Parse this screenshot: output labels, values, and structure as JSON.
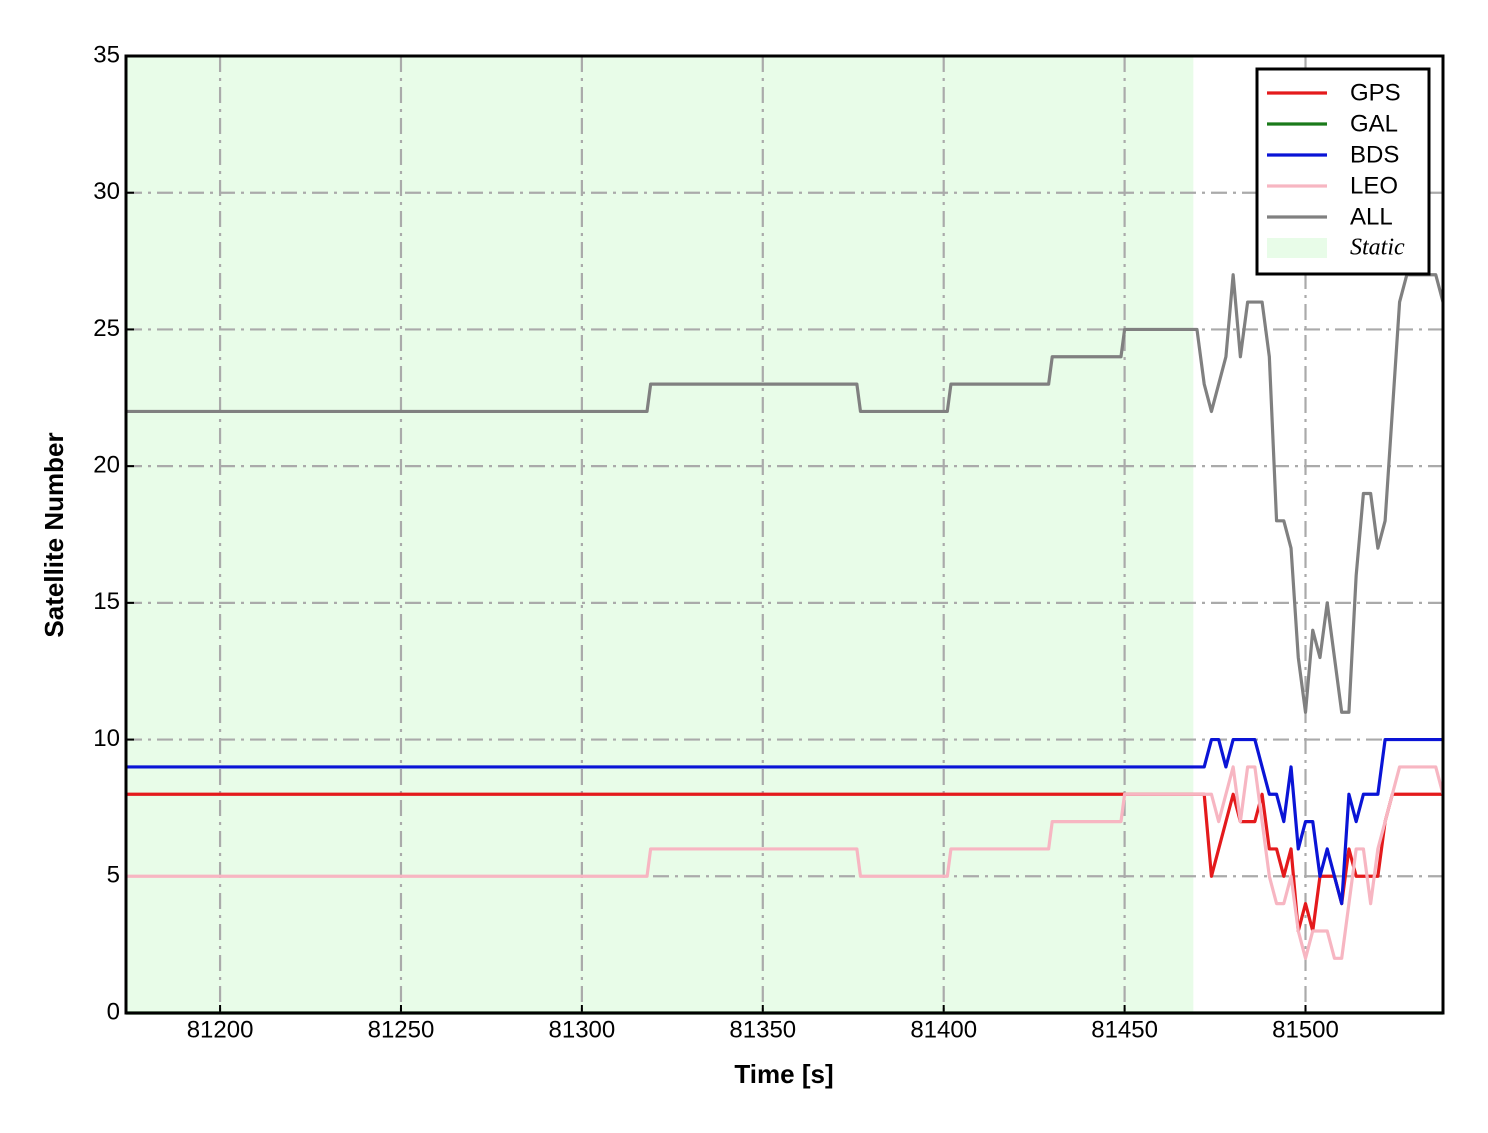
{
  "chart_data": {
    "type": "line",
    "xlabel": "Time [s]",
    "ylabel": "Satellite Number",
    "x": [
      81174,
      81318,
      81319,
      81376,
      81377,
      81401,
      81402,
      81429,
      81430,
      81449,
      81450,
      81470,
      81472,
      81474,
      81476,
      81478,
      81480,
      81482,
      81484,
      81486,
      81488,
      81490,
      81492,
      81494,
      81496,
      81498,
      81500,
      81502,
      81504,
      81506,
      81508,
      81510,
      81512,
      81514,
      81516,
      81518,
      81520,
      81522,
      81524,
      81526,
      81528,
      81530,
      81532,
      81534,
      81536,
      81538
    ],
    "series": [
      {
        "name": "GPS",
        "color": "#e41a1c",
        "values": [
          8,
          8,
          8,
          8,
          8,
          8,
          8,
          8,
          8,
          8,
          8,
          8,
          8,
          5,
          6,
          7,
          8,
          7,
          7,
          7,
          8,
          6,
          6,
          5,
          6,
          3,
          4,
          3,
          5,
          5,
          5,
          4,
          6,
          5,
          5,
          5,
          5,
          7,
          8,
          8,
          8,
          8,
          8,
          8,
          8,
          8
        ]
      },
      {
        "name": "GAL",
        "color": "#1a7a1a",
        "values": [
          0,
          0,
          0,
          0,
          0,
          0,
          0,
          0,
          0,
          0,
          0,
          0,
          0,
          0,
          0,
          0,
          0,
          0,
          0,
          0,
          0,
          0,
          0,
          0,
          0,
          0,
          0,
          0,
          0,
          0,
          0,
          0,
          0,
          0,
          0,
          0,
          0,
          0,
          0,
          0,
          0,
          0,
          0,
          0,
          0,
          0
        ]
      },
      {
        "name": "BDS",
        "color": "#0a14d6",
        "values": [
          9,
          9,
          9,
          9,
          9,
          9,
          9,
          9,
          9,
          9,
          9,
          9,
          9,
          10,
          10,
          9,
          10,
          10,
          10,
          10,
          9,
          8,
          8,
          7,
          9,
          6,
          7,
          7,
          5,
          6,
          5,
          4,
          8,
          7,
          8,
          8,
          8,
          10,
          10,
          10,
          10,
          10,
          10,
          10,
          10,
          10
        ]
      },
      {
        "name": "LEO",
        "color": "#f7b6c2",
        "values": [
          5,
          5,
          6,
          6,
          5,
          5,
          6,
          6,
          7,
          7,
          8,
          8,
          8,
          8,
          7,
          8,
          9,
          7,
          9,
          9,
          7,
          5,
          4,
          4,
          5,
          3,
          2,
          3,
          3,
          3,
          2,
          2,
          4,
          6,
          6,
          4,
          6,
          7,
          8,
          9,
          9,
          9,
          9,
          9,
          9,
          8
        ]
      },
      {
        "name": "ALL",
        "color": "#808080",
        "values": [
          22,
          22,
          23,
          23,
          22,
          22,
          23,
          23,
          24,
          24,
          25,
          25,
          23,
          22,
          23,
          24,
          27,
          24,
          26,
          26,
          26,
          24,
          18,
          18,
          17,
          13,
          11,
          14,
          13,
          15,
          13,
          11,
          11,
          16,
          19,
          19,
          17,
          18,
          22,
          26,
          27,
          27,
          27,
          27,
          27,
          26
        ]
      }
    ],
    "shaded_region": {
      "name": "Static",
      "xrange": [
        81174,
        81469
      ],
      "color": "#e8fce8"
    },
    "xlim": [
      81174,
      81538
    ],
    "ylim": [
      0,
      35
    ],
    "xticks": [
      81200,
      81250,
      81300,
      81350,
      81400,
      81450,
      81500
    ],
    "yticks": [
      0,
      5,
      10,
      15,
      20,
      25,
      30,
      35
    ],
    "grid": true,
    "legend_position": "upper right"
  }
}
